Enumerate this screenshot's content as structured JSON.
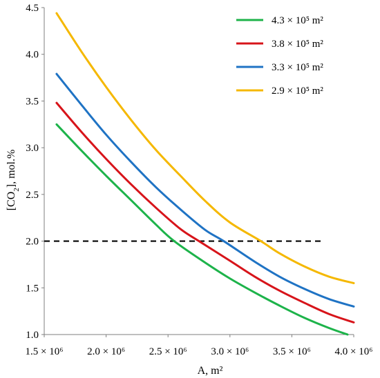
{
  "chart_data": {
    "type": "line",
    "xlabel": "A, m²",
    "ylabel_main": "[CO",
    "ylabel_sub": "2",
    "ylabel_tail": "], mol.%",
    "xlim": [
      1500000,
      4000000
    ],
    "ylim": [
      1.0,
      4.5
    ],
    "x_ticks": [
      1500000,
      2000000,
      2500000,
      3000000,
      3500000,
      4000000
    ],
    "x_tick_labels": [
      "1.5 × 10⁶",
      "2.0 × 10⁶",
      "2.5 × 10⁶",
      "3.0 × 10⁶",
      "3.5 × 10⁶",
      "4.0 × 10⁶"
    ],
    "y_ticks": [
      1.0,
      1.5,
      2.0,
      2.5,
      3.0,
      3.5,
      4.0,
      4.5
    ],
    "y_tick_labels": [
      "1.0",
      "1.5",
      "2.0",
      "2.5",
      "3.0",
      "3.5",
      "4.0",
      "4.5"
    ],
    "legend_position": "top-right",
    "reference_line": {
      "y": 2.0,
      "x_start": 1500000,
      "x_end": 3750000,
      "style": "dashed",
      "color": "#000000"
    },
    "series": [
      {
        "name": "4.3 × 10⁵ m²",
        "color": "#1db34a",
        "x": [
          1600000,
          1800000,
          2000000,
          2200000,
          2400000,
          2550000,
          2800000,
          3000000,
          3200000,
          3400000,
          3600000,
          3800000,
          3950000
        ],
        "y": [
          3.25,
          2.97,
          2.7,
          2.44,
          2.18,
          2.0,
          1.77,
          1.6,
          1.45,
          1.31,
          1.18,
          1.07,
          1.0
        ]
      },
      {
        "name": "3.8 × 10⁵ m²",
        "color": "#d7141a",
        "x": [
          1600000,
          1800000,
          2000000,
          2200000,
          2400000,
          2600000,
          2750000,
          3000000,
          3200000,
          3400000,
          3600000,
          3800000,
          4000000
        ],
        "y": [
          3.48,
          3.17,
          2.88,
          2.61,
          2.36,
          2.13,
          2.0,
          1.79,
          1.62,
          1.47,
          1.34,
          1.22,
          1.13
        ]
      },
      {
        "name": "3.3 × 10⁵ m²",
        "color": "#1f73c4",
        "x": [
          1600000,
          1800000,
          2000000,
          2200000,
          2400000,
          2600000,
          2800000,
          2950000,
          3200000,
          3400000,
          3600000,
          3800000,
          4000000
        ],
        "y": [
          3.79,
          3.46,
          3.14,
          2.85,
          2.58,
          2.34,
          2.12,
          2.0,
          1.78,
          1.62,
          1.49,
          1.38,
          1.3
        ]
      },
      {
        "name": "2.9 × 10⁵ m²",
        "color": "#f5b800",
        "x": [
          1600000,
          1800000,
          2000000,
          2200000,
          2400000,
          2600000,
          2800000,
          3000000,
          3250000,
          3400000,
          3600000,
          3800000,
          4000000
        ],
        "y": [
          4.44,
          4.03,
          3.65,
          3.3,
          2.98,
          2.7,
          2.43,
          2.2,
          2.0,
          1.87,
          1.73,
          1.62,
          1.55
        ]
      }
    ]
  }
}
